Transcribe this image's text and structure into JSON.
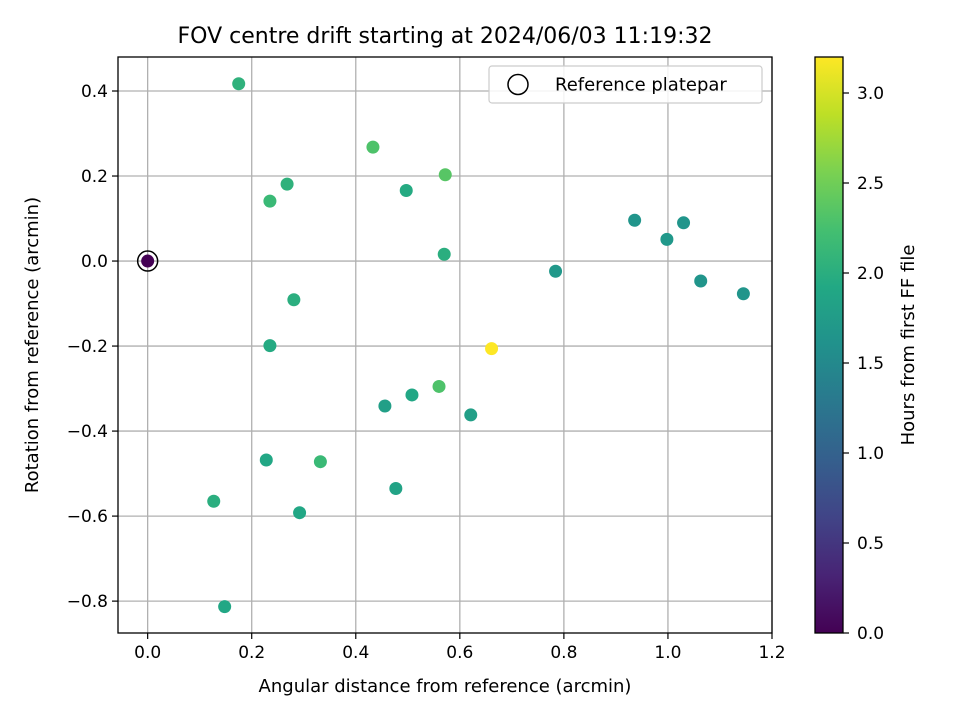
{
  "chart_data": {
    "type": "scatter",
    "title": "FOV centre drift starting at 2024/06/03 11:19:32",
    "xlabel": "Angular distance from reference (arcmin)",
    "ylabel": "Rotation from reference (arcmin)",
    "xlim": [
      -0.057,
      1.2
    ],
    "ylim": [
      -0.875,
      0.48
    ],
    "xticks": [
      0.0,
      0.2,
      0.4,
      0.6,
      0.8,
      1.0,
      1.2
    ],
    "xtick_labels": [
      "0.0",
      "0.2",
      "0.4",
      "0.6",
      "0.8",
      "1.0",
      "1.2"
    ],
    "yticks": [
      0.4,
      0.2,
      0.0,
      -0.2,
      -0.4,
      -0.6,
      -0.8
    ],
    "ytick_labels": [
      "0.4",
      "0.2",
      "0.0",
      "−0.2",
      "−0.4",
      "−0.6",
      "−0.8"
    ],
    "grid": true,
    "legend": {
      "placement": "top-right",
      "entries": [
        "Reference platepar"
      ]
    },
    "colorbar": {
      "label": "Hours from first FF file",
      "range": [
        0.0,
        3.2
      ],
      "ticks": [
        0.0,
        0.5,
        1.0,
        1.5,
        2.0,
        2.5,
        3.0
      ],
      "tick_labels": [
        "0.0",
        "0.5",
        "1.0",
        "1.5",
        "2.0",
        "2.5",
        "3.0"
      ],
      "colormap": "viridis"
    },
    "reference_point": {
      "x": 0.0,
      "y": 0.0,
      "hours": 0.0
    },
    "points": [
      {
        "x": 0.175,
        "y": 0.417,
        "hours": 2.05
      },
      {
        "x": 0.433,
        "y": 0.268,
        "hours": 2.3
      },
      {
        "x": 0.572,
        "y": 0.203,
        "hours": 2.35
      },
      {
        "x": 0.268,
        "y": 0.181,
        "hours": 2.05
      },
      {
        "x": 0.497,
        "y": 0.166,
        "hours": 1.95
      },
      {
        "x": 0.235,
        "y": 0.141,
        "hours": 2.15
      },
      {
        "x": 0.57,
        "y": 0.016,
        "hours": 2.0
      },
      {
        "x": 0.936,
        "y": 0.096,
        "hours": 1.65
      },
      {
        "x": 1.03,
        "y": 0.09,
        "hours": 1.65
      },
      {
        "x": 0.998,
        "y": 0.051,
        "hours": 1.7
      },
      {
        "x": 0.784,
        "y": -0.024,
        "hours": 1.7
      },
      {
        "x": 1.063,
        "y": -0.047,
        "hours": 1.65
      },
      {
        "x": 1.145,
        "y": -0.077,
        "hours": 1.65
      },
      {
        "x": 0.281,
        "y": -0.091,
        "hours": 2.0
      },
      {
        "x": 0.235,
        "y": -0.199,
        "hours": 1.95
      },
      {
        "x": 0.661,
        "y": -0.206,
        "hours": 3.2
      },
      {
        "x": 0.56,
        "y": -0.295,
        "hours": 2.3
      },
      {
        "x": 0.508,
        "y": -0.315,
        "hours": 1.9
      },
      {
        "x": 0.456,
        "y": -0.341,
        "hours": 1.8
      },
      {
        "x": 0.621,
        "y": -0.362,
        "hours": 1.8
      },
      {
        "x": 0.228,
        "y": -0.468,
        "hours": 1.9
      },
      {
        "x": 0.332,
        "y": -0.472,
        "hours": 2.15
      },
      {
        "x": 0.477,
        "y": -0.535,
        "hours": 1.85
      },
      {
        "x": 0.127,
        "y": -0.565,
        "hours": 2.0
      },
      {
        "x": 0.292,
        "y": -0.592,
        "hours": 1.9
      },
      {
        "x": 0.148,
        "y": -0.813,
        "hours": 1.9
      }
    ],
    "colors": {
      "grid": "#b0b0b0",
      "axes": "#000000",
      "legend_border": "#cccccc",
      "reference_ring": "#000000"
    }
  }
}
